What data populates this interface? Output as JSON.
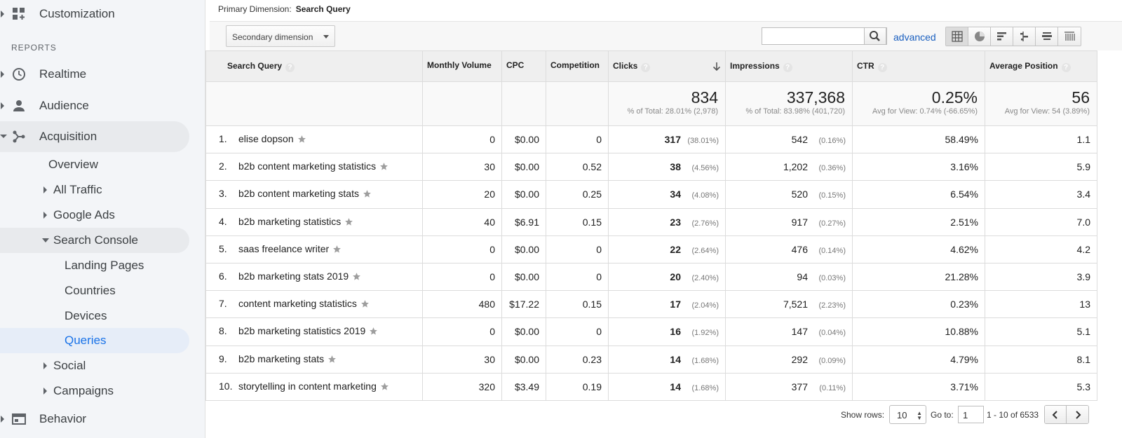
{
  "sidebar": {
    "customization": "Customization",
    "reports_label": "REPORTS",
    "realtime": "Realtime",
    "audience": "Audience",
    "acquisition": "Acquisition",
    "overview": "Overview",
    "all_traffic": "All Traffic",
    "google_ads": "Google Ads",
    "search_console": "Search Console",
    "landing_pages": "Landing Pages",
    "countries": "Countries",
    "devices": "Devices",
    "queries": "Queries",
    "social": "Social",
    "campaigns": "Campaigns",
    "behavior": "Behavior"
  },
  "primary_dimension": {
    "label": "Primary Dimension:",
    "value": "Search Query"
  },
  "toolbar": {
    "secondary_dimension": "Secondary dimension",
    "search_value": "",
    "advanced": "advanced"
  },
  "table": {
    "headers": {
      "query": "Search Query",
      "monthly_volume": "Monthly Volume",
      "cpc": "CPC",
      "competition": "Competition",
      "clicks": "Clicks",
      "impressions": "Impressions",
      "ctr": "CTR",
      "avg_position": "Average Position"
    },
    "totals": {
      "clicks": "834",
      "clicks_sub": "% of Total: 28.01% (2,978)",
      "impressions": "337,368",
      "impressions_sub": "% of Total: 83.98% (401,720)",
      "ctr": "0.25%",
      "ctr_sub": "Avg for View: 0.74% (-66.65%)",
      "avg_position": "56",
      "avg_position_sub": "Avg for View: 54 (3.89%)"
    },
    "rows": [
      {
        "num": "1.",
        "query": "elise dopson",
        "volume": "0",
        "cpc": "$0.00",
        "competition": "0",
        "clicks": "317",
        "clicks_pct": "(38.01%)",
        "impressions": "542",
        "impressions_pct": "(0.16%)",
        "ctr": "58.49%",
        "position": "1.1"
      },
      {
        "num": "2.",
        "query": "b2b content marketing statistics",
        "volume": "30",
        "cpc": "$0.00",
        "competition": "0.52",
        "clicks": "38",
        "clicks_pct": "(4.56%)",
        "impressions": "1,202",
        "impressions_pct": "(0.36%)",
        "ctr": "3.16%",
        "position": "5.9"
      },
      {
        "num": "3.",
        "query": "b2b content marketing stats",
        "volume": "20",
        "cpc": "$0.00",
        "competition": "0.25",
        "clicks": "34",
        "clicks_pct": "(4.08%)",
        "impressions": "520",
        "impressions_pct": "(0.15%)",
        "ctr": "6.54%",
        "position": "3.4"
      },
      {
        "num": "4.",
        "query": "b2b marketing statistics",
        "volume": "40",
        "cpc": "$6.91",
        "competition": "0.15",
        "clicks": "23",
        "clicks_pct": "(2.76%)",
        "impressions": "917",
        "impressions_pct": "(0.27%)",
        "ctr": "2.51%",
        "position": "7.0"
      },
      {
        "num": "5.",
        "query": "saas freelance writer",
        "volume": "0",
        "cpc": "$0.00",
        "competition": "0",
        "clicks": "22",
        "clicks_pct": "(2.64%)",
        "impressions": "476",
        "impressions_pct": "(0.14%)",
        "ctr": "4.62%",
        "position": "4.2"
      },
      {
        "num": "6.",
        "query": "b2b marketing stats 2019",
        "volume": "0",
        "cpc": "$0.00",
        "competition": "0",
        "clicks": "20",
        "clicks_pct": "(2.40%)",
        "impressions": "94",
        "impressions_pct": "(0.03%)",
        "ctr": "21.28%",
        "position": "3.9"
      },
      {
        "num": "7.",
        "query": "content marketing statistics",
        "volume": "480",
        "cpc": "$17.22",
        "competition": "0.15",
        "clicks": "17",
        "clicks_pct": "(2.04%)",
        "impressions": "7,521",
        "impressions_pct": "(2.23%)",
        "ctr": "0.23%",
        "position": "13"
      },
      {
        "num": "8.",
        "query": "b2b marketing statistics 2019",
        "volume": "0",
        "cpc": "$0.00",
        "competition": "0",
        "clicks": "16",
        "clicks_pct": "(1.92%)",
        "impressions": "147",
        "impressions_pct": "(0.04%)",
        "ctr": "10.88%",
        "position": "5.1"
      },
      {
        "num": "9.",
        "query": "b2b marketing stats",
        "volume": "30",
        "cpc": "$0.00",
        "competition": "0.23",
        "clicks": "14",
        "clicks_pct": "(1.68%)",
        "impressions": "292",
        "impressions_pct": "(0.09%)",
        "ctr": "4.79%",
        "position": "8.1"
      },
      {
        "num": "10.",
        "query": "storytelling in content marketing",
        "volume": "320",
        "cpc": "$3.49",
        "competition": "0.19",
        "clicks": "14",
        "clicks_pct": "(1.68%)",
        "impressions": "377",
        "impressions_pct": "(0.11%)",
        "ctr": "3.71%",
        "position": "5.3"
      }
    ]
  },
  "footer": {
    "show_rows_label": "Show rows:",
    "show_rows_value": "10",
    "goto_label": "Go to:",
    "goto_value": "1",
    "range": "1 - 10 of 6533"
  },
  "icons": {
    "customization": "dashboard-grid-icon",
    "realtime": "clock-icon",
    "audience": "person-icon",
    "acquisition": "fork-icon",
    "behavior": "window-icon",
    "search": "search-icon",
    "star": "star-icon"
  },
  "colors": {
    "accent_blue": "#1a73e8",
    "link_blue": "#1a5fbf",
    "active_pill": "#e6edf8"
  }
}
